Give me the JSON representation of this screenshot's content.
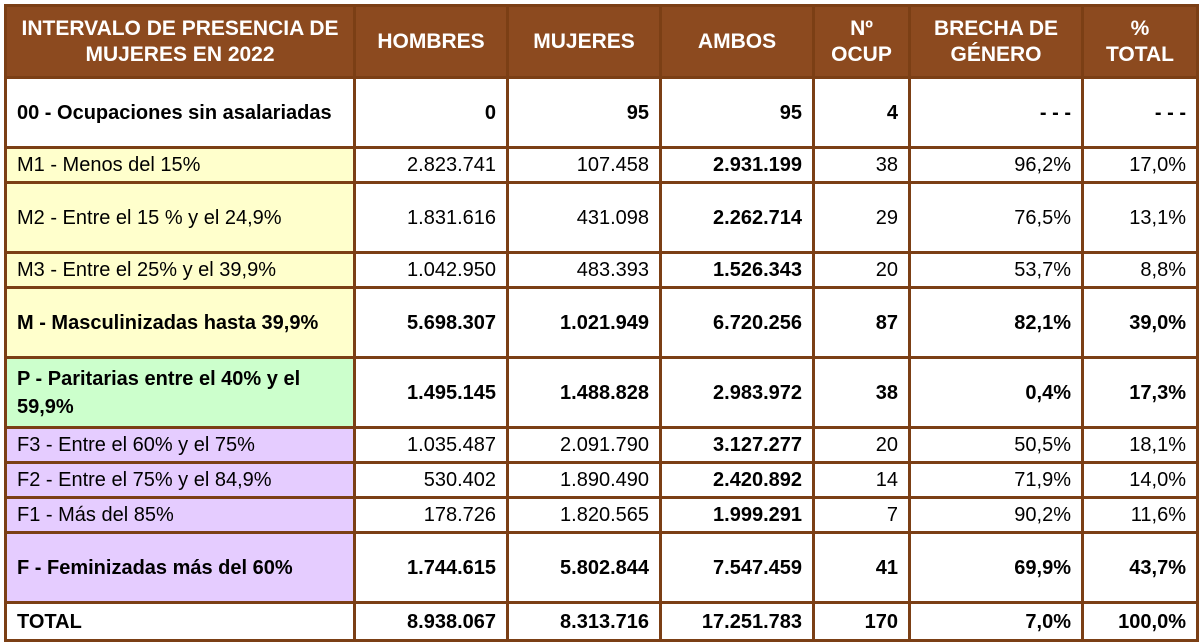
{
  "headers": [
    "INTERVALO DE PRESENCIA DE MUJERES EN 2022",
    "HOMBRES",
    "MUJERES",
    "AMBOS",
    "Nº OCUP",
    "BRECHA DE GÉNERO",
    "% TOTAL"
  ],
  "rows": [
    {
      "label": "00 - Ocupaciones sin asalariadas",
      "hombres": "0",
      "mujeres": "95",
      "ambos": "95",
      "ocup": "4",
      "brecha": "- - -",
      "total": "- - -",
      "group": "none",
      "bold": true
    },
    {
      "label": "M1 - Menos del 15%",
      "hombres": "2.823.741",
      "mujeres": "107.458",
      "ambos": "2.931.199",
      "ocup": "38",
      "brecha": "96,2%",
      "total": "17,0%",
      "group": "yellow",
      "bold": false
    },
    {
      "label": "M2 - Entre el 15 % y el 24,9%",
      "hombres": "1.831.616",
      "mujeres": "431.098",
      "ambos": "2.262.714",
      "ocup": "29",
      "brecha": "76,5%",
      "total": "13,1%",
      "group": "yellow",
      "bold": false
    },
    {
      "label": "M3 - Entre el 25% y el 39,9%",
      "hombres": "1.042.950",
      "mujeres": "483.393",
      "ambos": "1.526.343",
      "ocup": "20",
      "brecha": "53,7%",
      "total": "8,8%",
      "group": "yellow",
      "bold": false
    },
    {
      "label": "M - Masculinizadas hasta 39,9%",
      "hombres": "5.698.307",
      "mujeres": "1.021.949",
      "ambos": "6.720.256",
      "ocup": "87",
      "brecha": "82,1%",
      "total": "39,0%",
      "group": "yellow",
      "bold": true
    },
    {
      "label": "P - Paritarias entre el 40% y el 59,9%",
      "hombres": "1.495.145",
      "mujeres": "1.488.828",
      "ambos": "2.983.972",
      "ocup": "38",
      "brecha": "0,4%",
      "total": "17,3%",
      "group": "green",
      "bold": true
    },
    {
      "label": "F3 - Entre el 60% y el 75%",
      "hombres": "1.035.487",
      "mujeres": "2.091.790",
      "ambos": "3.127.277",
      "ocup": "20",
      "brecha": "50,5%",
      "total": "18,1%",
      "group": "purple",
      "bold": false
    },
    {
      "label": "F2 - Entre el 75% y el 84,9%",
      "hombres": "530.402",
      "mujeres": "1.890.490",
      "ambos": "2.420.892",
      "ocup": "14",
      "brecha": "71,9%",
      "total": "14,0%",
      "group": "purple",
      "bold": false
    },
    {
      "label": "F1 - Más del 85%",
      "hombres": "178.726",
      "mujeres": "1.820.565",
      "ambos": "1.999.291",
      "ocup": "7",
      "brecha": "90,2%",
      "total": "11,6%",
      "group": "purple",
      "bold": false
    },
    {
      "label": "F - Feminizadas más del 60%",
      "hombres": "1.744.615",
      "mujeres": "5.802.844",
      "ambos": "7.547.459",
      "ocup": "41",
      "brecha": "69,9%",
      "total": "43,7%",
      "group": "purple",
      "bold": true
    },
    {
      "label": "TOTAL",
      "hombres": "8.938.067",
      "mujeres": "8.313.716",
      "ambos": "17.251.783",
      "ocup": "170",
      "brecha": "7,0%",
      "total": "100,0%",
      "group": "none",
      "bold": true
    }
  ],
  "colors": {
    "header_bg": "#8c4a1f",
    "border": "#7b3f15",
    "yellow": "#ffffcc",
    "green": "#ccffcc",
    "purple": "#e5ccff"
  }
}
